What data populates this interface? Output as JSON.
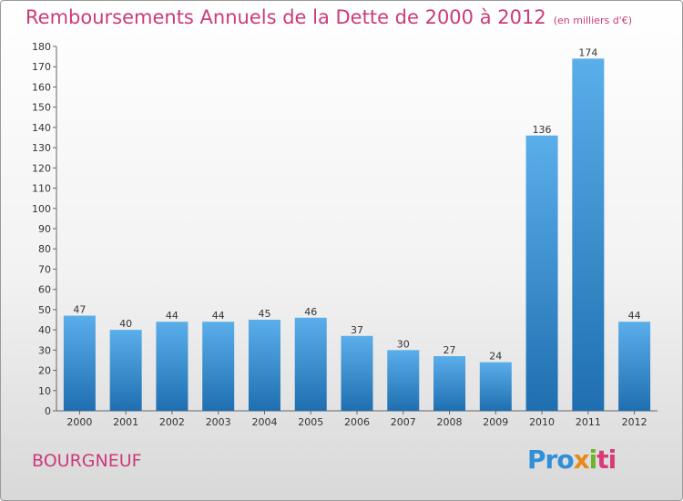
{
  "header": {
    "title": "Remboursements Annuels de la Dette de 2000 à 2012",
    "subtitle": "(en milliers d'€)"
  },
  "footer": {
    "commune": "BOURGNEUF",
    "logo_parts": [
      "Pro",
      "x",
      "i",
      "ti"
    ]
  },
  "colors": {
    "title": "#cc3b7a",
    "bar_light": "#5aaeea",
    "bar_dark": "#1f6fb0"
  },
  "chart_data": {
    "type": "bar",
    "title": "Remboursements Annuels de la Dette de 2000 à 2012",
    "subtitle": "(en milliers d'€)",
    "xlabel": "",
    "ylabel": "",
    "categories": [
      "2000",
      "2001",
      "2002",
      "2003",
      "2004",
      "2005",
      "2006",
      "2007",
      "2008",
      "2009",
      "2010",
      "2011",
      "2012"
    ],
    "values": [
      47,
      40,
      44,
      44,
      45,
      46,
      37,
      30,
      27,
      24,
      136,
      174,
      44
    ],
    "ylim": [
      0,
      180
    ],
    "yticks": [
      0,
      10,
      20,
      30,
      40,
      50,
      60,
      70,
      80,
      90,
      100,
      110,
      120,
      130,
      140,
      150,
      160,
      170,
      180
    ],
    "grid": false,
    "legend": "none"
  }
}
